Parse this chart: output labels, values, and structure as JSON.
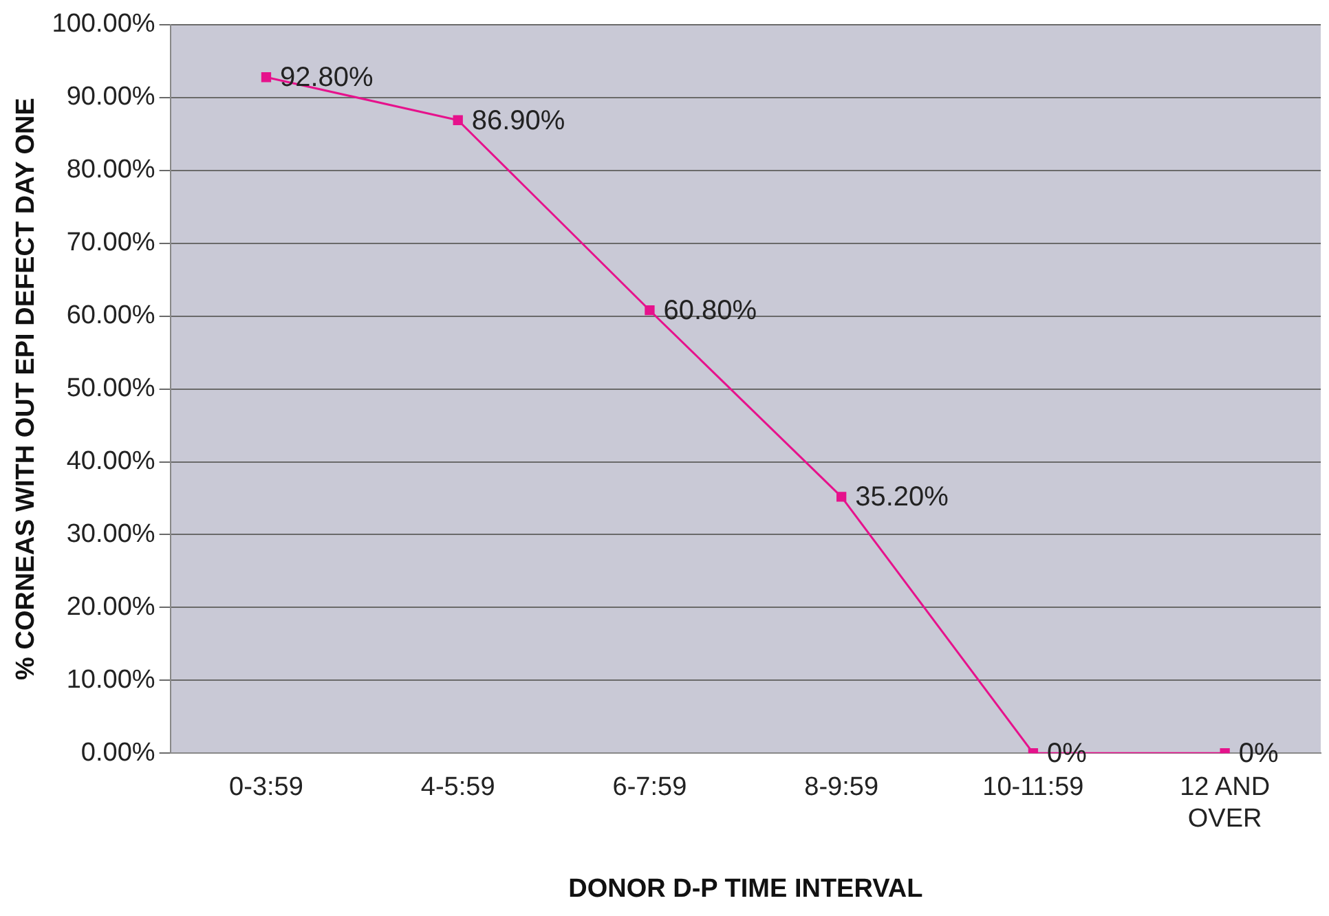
{
  "chart_data": {
    "type": "line",
    "xlabel": "DONOR D-P TIME INTERVAL",
    "ylabel": "% CORNEAS WITH OUT EPI DEFECT DAY ONE",
    "categories": [
      "0-3:59",
      "4-5:59",
      "6-7:59",
      "8-9:59",
      "10-11:59",
      "12 AND OVER"
    ],
    "series": [
      {
        "color": "#e6128c",
        "values": [
          92.8,
          86.9,
          60.8,
          35.2,
          0,
          0
        ],
        "value_labels": [
          "92.80%",
          "86.90%",
          "60.80%",
          "35.20%",
          "0%",
          "0%"
        ]
      }
    ],
    "ylim": [
      0,
      100
    ],
    "yticks": [
      {
        "value": 0,
        "label": "0.00%"
      },
      {
        "value": 10,
        "label": "10.00%"
      },
      {
        "value": 20,
        "label": "20.00%"
      },
      {
        "value": 30,
        "label": "30.00%"
      },
      {
        "value": 40,
        "label": "40.00%"
      },
      {
        "value": 50,
        "label": "50.00%"
      },
      {
        "value": 60,
        "label": "60.00%"
      },
      {
        "value": 70,
        "label": "70.00%"
      },
      {
        "value": 80,
        "label": "80.00%"
      },
      {
        "value": 90,
        "label": "90.00%"
      },
      {
        "value": 100,
        "label": "100.00%"
      }
    ],
    "grid": "y",
    "legend": false,
    "marker": "square",
    "line_style": "solid"
  }
}
